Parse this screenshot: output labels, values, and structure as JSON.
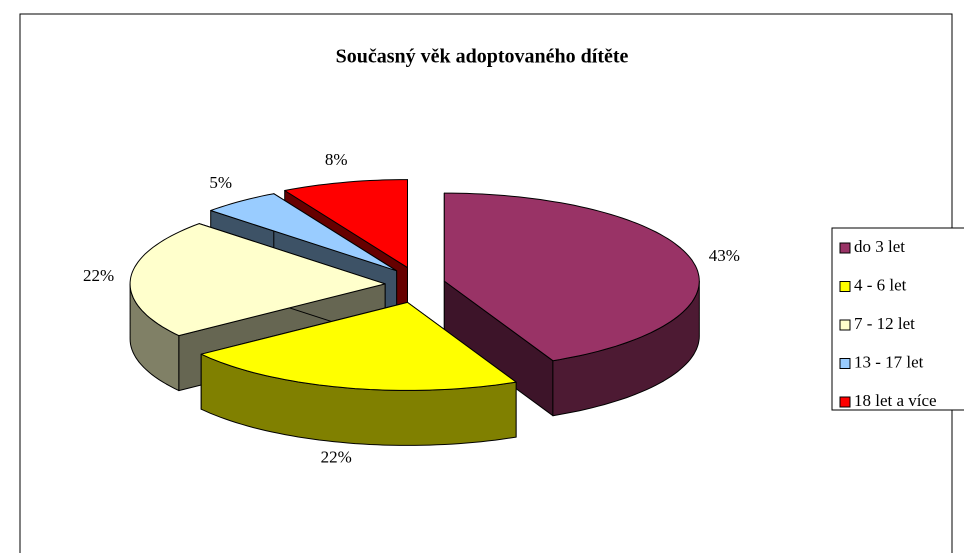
{
  "chart_data": {
    "type": "pie",
    "title": "Současný věk adoptovaného dítěte",
    "categories": [
      "do 3 let",
      "4 - 6 let",
      "7 - 12 let",
      "13 - 17 let",
      "18 let a více"
    ],
    "values": [
      43,
      22,
      22,
      5,
      8
    ],
    "value_labels": [
      "43%",
      "22%",
      "22%",
      "5%",
      "8%"
    ],
    "colors": [
      "#993366",
      "#ffff00",
      "#ffffcc",
      "#99ccff",
      "#ff0000"
    ],
    "legend": "right"
  }
}
